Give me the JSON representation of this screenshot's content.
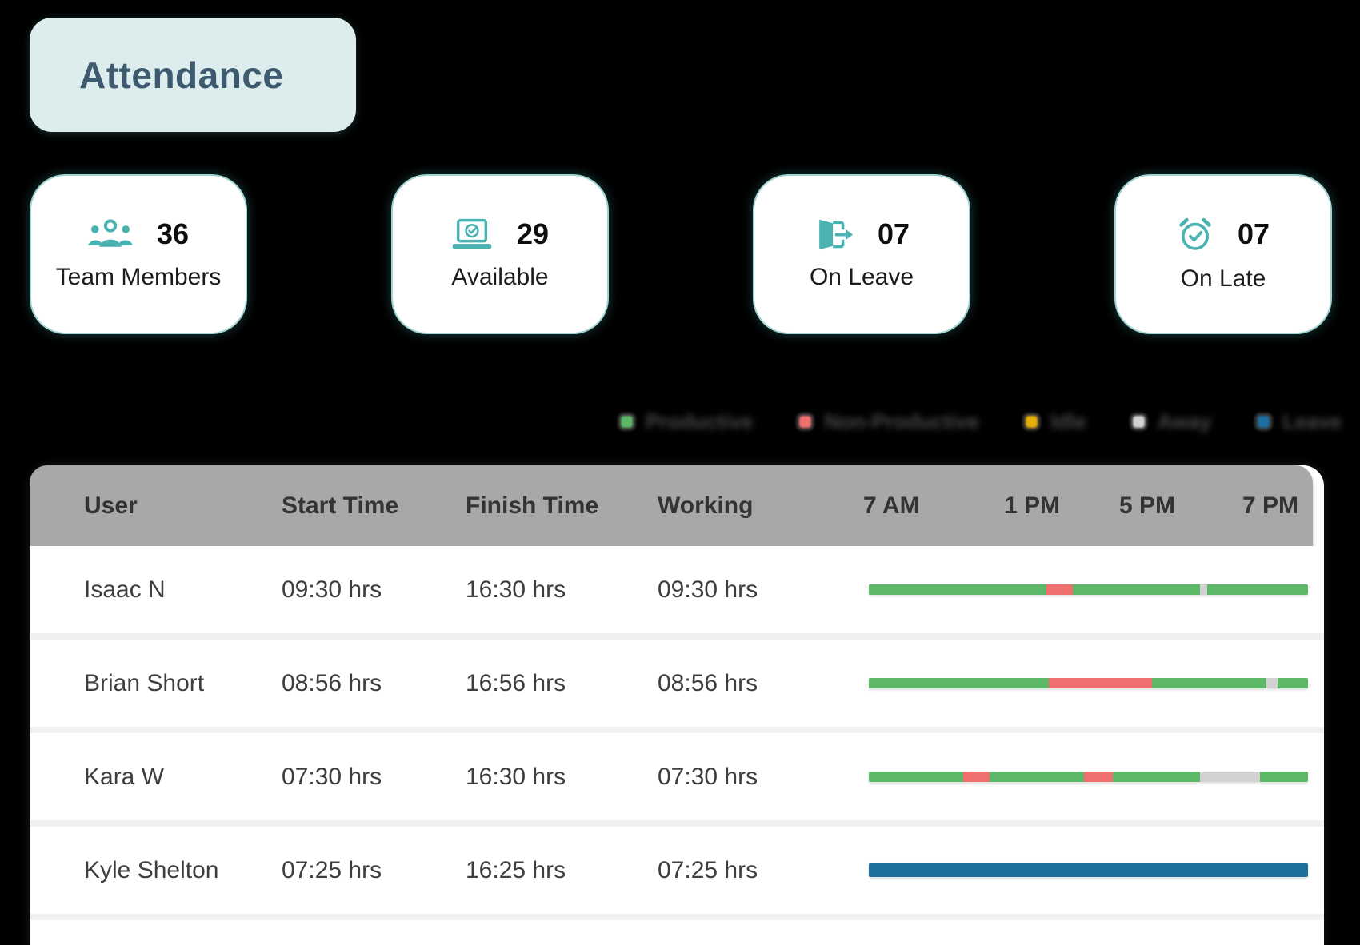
{
  "colors": {
    "accent_teal": "#4bb2b2",
    "title_bg": "#ddecec",
    "title_text": "#3d5a6e",
    "header_bg": "#a8a8a8",
    "productive": "#5cb767",
    "non_productive": "#f06f6f",
    "idle": "#e7ae0a",
    "away": "#d2d2d2",
    "leave": "#1e6e9e"
  },
  "title": {
    "label": "Attendance"
  },
  "stats": [
    {
      "icon": "team-members-icon",
      "value": "36",
      "label": "Team Members"
    },
    {
      "icon": "laptop-check-icon",
      "value": "29",
      "label": "Available"
    },
    {
      "icon": "door-exit-icon",
      "value": "07",
      "label": "On Leave"
    },
    {
      "icon": "alarm-check-icon",
      "value": "07",
      "label": "On Late"
    }
  ],
  "legend": {
    "items": [
      {
        "key": "productive",
        "label": "Productive"
      },
      {
        "key": "non_productive",
        "label": "Non-Productive"
      },
      {
        "key": "idle",
        "label": "Idle"
      },
      {
        "key": "away",
        "label": "Away"
      },
      {
        "key": "leave",
        "label": "Leave"
      }
    ]
  },
  "table": {
    "columns": [
      "User",
      "Start Time",
      "Finish Time",
      "Working"
    ],
    "time_headers": [
      "7 AM",
      "1 PM",
      "5 PM",
      "7 PM"
    ],
    "rows": [
      {
        "user": "Isaac N",
        "start_time": "09:30 hrs",
        "finish_time": "16:30 hrs",
        "working": "09:30 hrs",
        "timeline": [
          {
            "status": "productive",
            "width_pct": 40.5
          },
          {
            "status": "non_productive",
            "width_pct": 6
          },
          {
            "status": "productive",
            "width_pct": 29
          },
          {
            "status": "away",
            "width_pct": 1.5
          },
          {
            "status": "productive",
            "width_pct": 23
          }
        ]
      },
      {
        "user": "Brian Short",
        "start_time": "08:56 hrs",
        "finish_time": "16:56 hrs",
        "working": "08:56 hrs",
        "timeline": [
          {
            "status": "productive",
            "width_pct": 41
          },
          {
            "status": "non_productive",
            "width_pct": 23.5
          },
          {
            "status": "productive",
            "width_pct": 26
          },
          {
            "status": "away",
            "width_pct": 2.5
          },
          {
            "status": "productive",
            "width_pct": 7
          }
        ]
      },
      {
        "user": "Kara W",
        "start_time": "07:30 hrs",
        "finish_time": "16:30 hrs",
        "working": "07:30 hrs",
        "timeline": [
          {
            "status": "productive",
            "width_pct": 21.5
          },
          {
            "status": "non_productive",
            "width_pct": 6
          },
          {
            "status": "productive",
            "width_pct": 21.5
          },
          {
            "status": "non_productive",
            "width_pct": 6.5
          },
          {
            "status": "productive",
            "width_pct": 20
          },
          {
            "status": "away",
            "width_pct": 13.5
          },
          {
            "status": "productive",
            "width_pct": 11
          }
        ]
      },
      {
        "user": "Kyle Shelton",
        "start_time": "07:25 hrs",
        "finish_time": "16:25 hrs",
        "working": "07:25 hrs",
        "timeline": [
          {
            "status": "leave",
            "width_pct": 100
          }
        ]
      }
    ]
  }
}
